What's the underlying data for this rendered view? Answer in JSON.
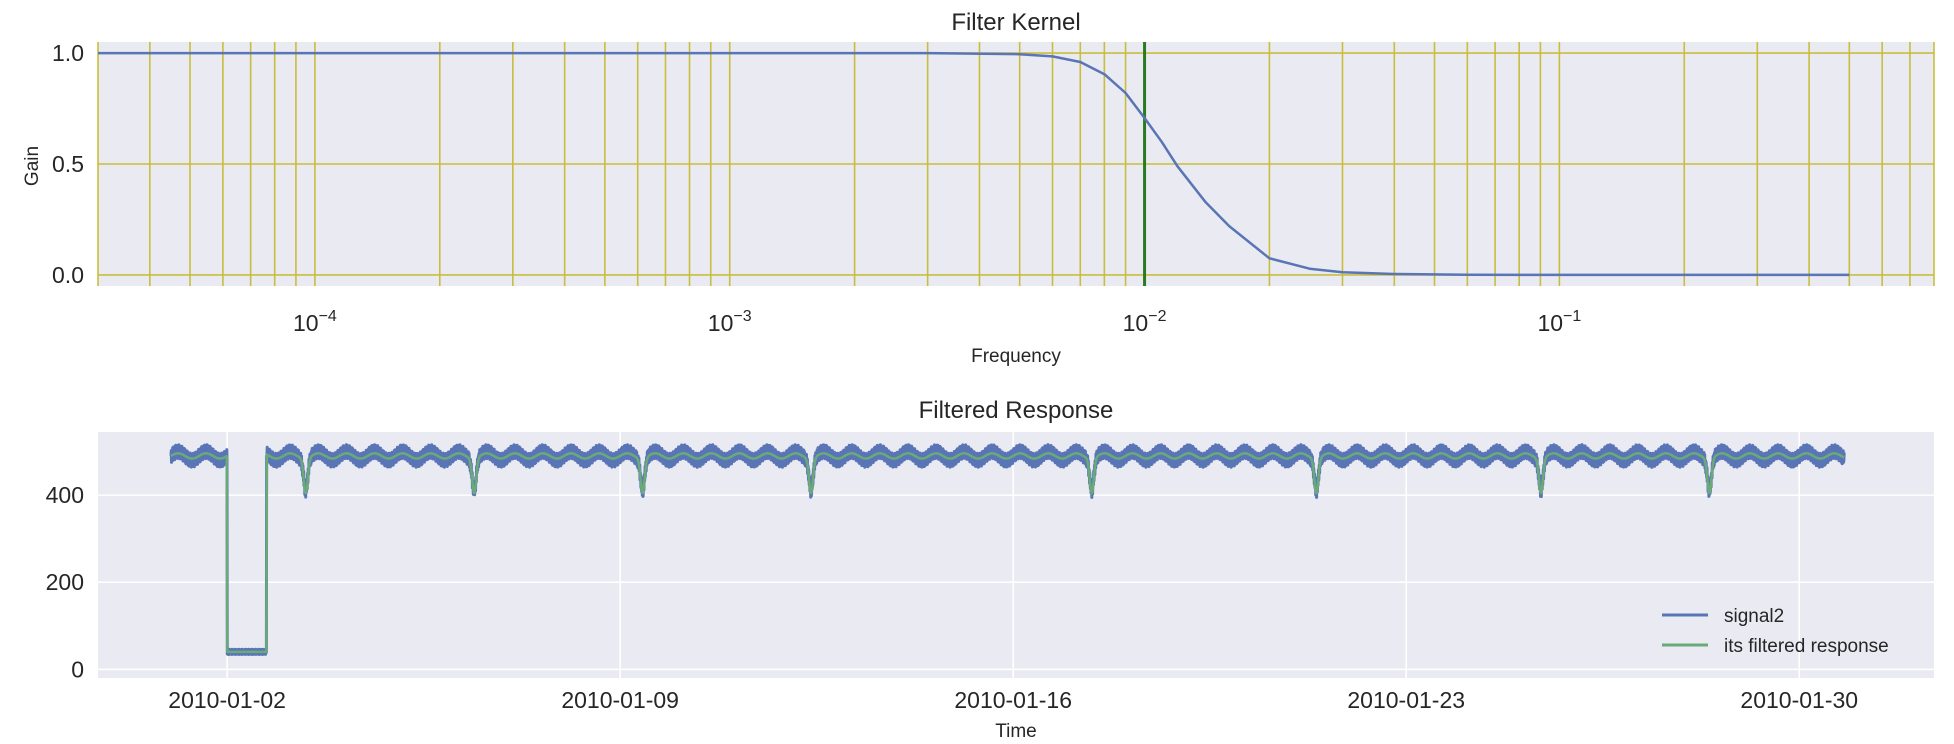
{
  "chart_data": [
    {
      "type": "line",
      "title": "Filter Kernel",
      "xlabel": "Frequency",
      "ylabel": "Gain",
      "xscale": "log",
      "xlim": [
        3e-05,
        0.8
      ],
      "ylim": [
        -0.05,
        1.05
      ],
      "yticks": [
        0.0,
        0.5,
        1.0
      ],
      "ytick_labels": [
        "0.0",
        "0.5",
        "1.0"
      ],
      "xticks": [
        {
          "base": "10",
          "exp": "−4",
          "value": 0.0001
        },
        {
          "base": "10",
          "exp": "−3",
          "value": 0.001
        },
        {
          "base": "10",
          "exp": "−2",
          "value": 0.01
        },
        {
          "base": "10",
          "exp": "−1",
          "value": 0.1
        }
      ],
      "grid": "on (yellow, major and minor x)",
      "grid_color": "#c8be3c",
      "cutoff_line": {
        "x": 0.01,
        "color": "#2a7a22"
      },
      "series": [
        {
          "color": "#5a75b6",
          "x": [
            3e-05,
            0.0001,
            0.001,
            0.003,
            0.005,
            0.006,
            0.007,
            0.008,
            0.009,
            0.01,
            0.011,
            0.012,
            0.014,
            0.016,
            0.02,
            0.025,
            0.03,
            0.04,
            0.06,
            0.1,
            0.2,
            0.5
          ],
          "y": [
            1.0,
            1.0,
            1.0,
            1.0,
            0.995,
            0.985,
            0.96,
            0.905,
            0.82,
            0.707,
            0.6,
            0.49,
            0.33,
            0.22,
            0.075,
            0.028,
            0.012,
            0.004,
            0.001,
            0.0,
            0.0,
            0.0
          ]
        }
      ]
    },
    {
      "type": "line",
      "title": "Filtered Response",
      "xlabel": "Time",
      "ylabel": "",
      "xlim_days": [
        -1.3,
        31.4
      ],
      "ylim": [
        -20,
        545
      ],
      "yticks": [
        0,
        200,
        400
      ],
      "ytick_labels": [
        "0",
        "200",
        "400"
      ],
      "xticks": [
        {
          "label": "2010-01-02",
          "day": 1
        },
        {
          "label": "2010-01-09",
          "day": 8
        },
        {
          "label": "2010-01-16",
          "day": 15
        },
        {
          "label": "2010-01-23",
          "day": 22
        },
        {
          "label": "2010-01-30",
          "day": 29
        }
      ],
      "grid": "on (white)",
      "legend": "lower-right",
      "series": [
        {
          "name": "signal2",
          "color": "#5a75b6",
          "description": "oscillating band ~470-510 with a dropout near 40 from 2010-01-02 to 2010-01-03, dips to ~410 at 2010-01-06, 01-09, 01-12, 01-17, 01-21, 01-25, 01-28"
        },
        {
          "name": "its filtered response",
          "color": "#6aaa78",
          "dips": [
            {
              "date": "2010-01-03",
              "value": 410
            },
            {
              "date": "2010-01-06",
              "value": 410
            },
            {
              "date": "2010-01-09",
              "value": 410
            },
            {
              "date": "2010-01-12",
              "value": 410
            },
            {
              "date": "2010-01-17",
              "value": 410
            },
            {
              "date": "2010-01-21",
              "value": 410
            },
            {
              "date": "2010-01-25",
              "value": 410
            },
            {
              "date": "2010-01-28",
              "value": 410
            }
          ],
          "baseline": 490,
          "dropout": {
            "start": "2010-01-02",
            "end": "2010-01-03",
            "value": 40
          }
        }
      ]
    }
  ]
}
